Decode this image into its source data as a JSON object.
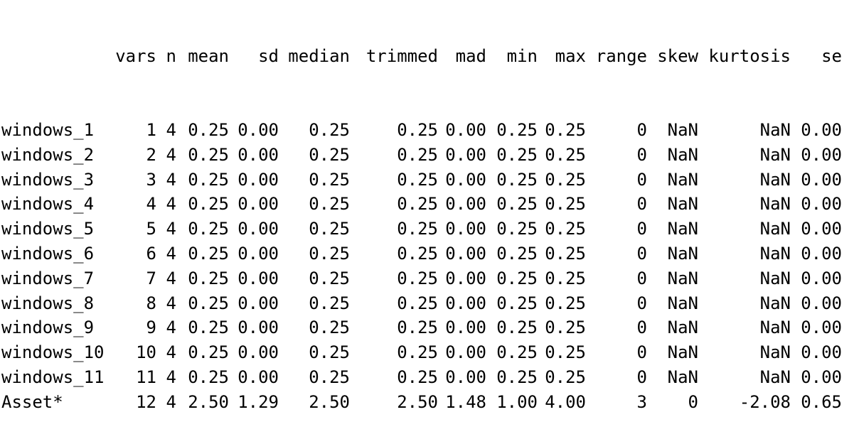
{
  "console": {
    "columns": [
      "vars",
      "n",
      "mean",
      "sd",
      "median",
      "trimmed",
      "mad",
      "min",
      "max",
      "range",
      "skew",
      "kurtosis",
      "se"
    ],
    "rows": [
      {
        "name": "windows_1",
        "values": [
          "1",
          "4",
          "0.25",
          "0.00",
          "0.25",
          "0.25",
          "0.00",
          "0.25",
          "0.25",
          "0",
          "NaN",
          "NaN",
          "0.00"
        ]
      },
      {
        "name": "windows_2",
        "values": [
          "2",
          "4",
          "0.25",
          "0.00",
          "0.25",
          "0.25",
          "0.00",
          "0.25",
          "0.25",
          "0",
          "NaN",
          "NaN",
          "0.00"
        ]
      },
      {
        "name": "windows_3",
        "values": [
          "3",
          "4",
          "0.25",
          "0.00",
          "0.25",
          "0.25",
          "0.00",
          "0.25",
          "0.25",
          "0",
          "NaN",
          "NaN",
          "0.00"
        ]
      },
      {
        "name": "windows_4",
        "values": [
          "4",
          "4",
          "0.25",
          "0.00",
          "0.25",
          "0.25",
          "0.00",
          "0.25",
          "0.25",
          "0",
          "NaN",
          "NaN",
          "0.00"
        ]
      },
      {
        "name": "windows_5",
        "values": [
          "5",
          "4",
          "0.25",
          "0.00",
          "0.25",
          "0.25",
          "0.00",
          "0.25",
          "0.25",
          "0",
          "NaN",
          "NaN",
          "0.00"
        ]
      },
      {
        "name": "windows_6",
        "values": [
          "6",
          "4",
          "0.25",
          "0.00",
          "0.25",
          "0.25",
          "0.00",
          "0.25",
          "0.25",
          "0",
          "NaN",
          "NaN",
          "0.00"
        ]
      },
      {
        "name": "windows_7",
        "values": [
          "7",
          "4",
          "0.25",
          "0.00",
          "0.25",
          "0.25",
          "0.00",
          "0.25",
          "0.25",
          "0",
          "NaN",
          "NaN",
          "0.00"
        ]
      },
      {
        "name": "windows_8",
        "values": [
          "8",
          "4",
          "0.25",
          "0.00",
          "0.25",
          "0.25",
          "0.00",
          "0.25",
          "0.25",
          "0",
          "NaN",
          "NaN",
          "0.00"
        ]
      },
      {
        "name": "windows_9",
        "values": [
          "9",
          "4",
          "0.25",
          "0.00",
          "0.25",
          "0.25",
          "0.00",
          "0.25",
          "0.25",
          "0",
          "NaN",
          "NaN",
          "0.00"
        ]
      },
      {
        "name": "windows_10",
        "values": [
          "10",
          "4",
          "0.25",
          "0.00",
          "0.25",
          "0.25",
          "0.00",
          "0.25",
          "0.25",
          "0",
          "NaN",
          "NaN",
          "0.00"
        ]
      },
      {
        "name": "windows_11",
        "values": [
          "11",
          "4",
          "0.25",
          "0.00",
          "0.25",
          "0.25",
          "0.00",
          "0.25",
          "0.25",
          "0",
          "NaN",
          "NaN",
          "0.00"
        ]
      },
      {
        "name": "Asset*",
        "values": [
          "12",
          "4",
          "2.50",
          "1.29",
          "2.50",
          "2.50",
          "1.48",
          "1.00",
          "4.00",
          "3",
          "0",
          "-2.08",
          "0.65"
        ]
      }
    ]
  }
}
